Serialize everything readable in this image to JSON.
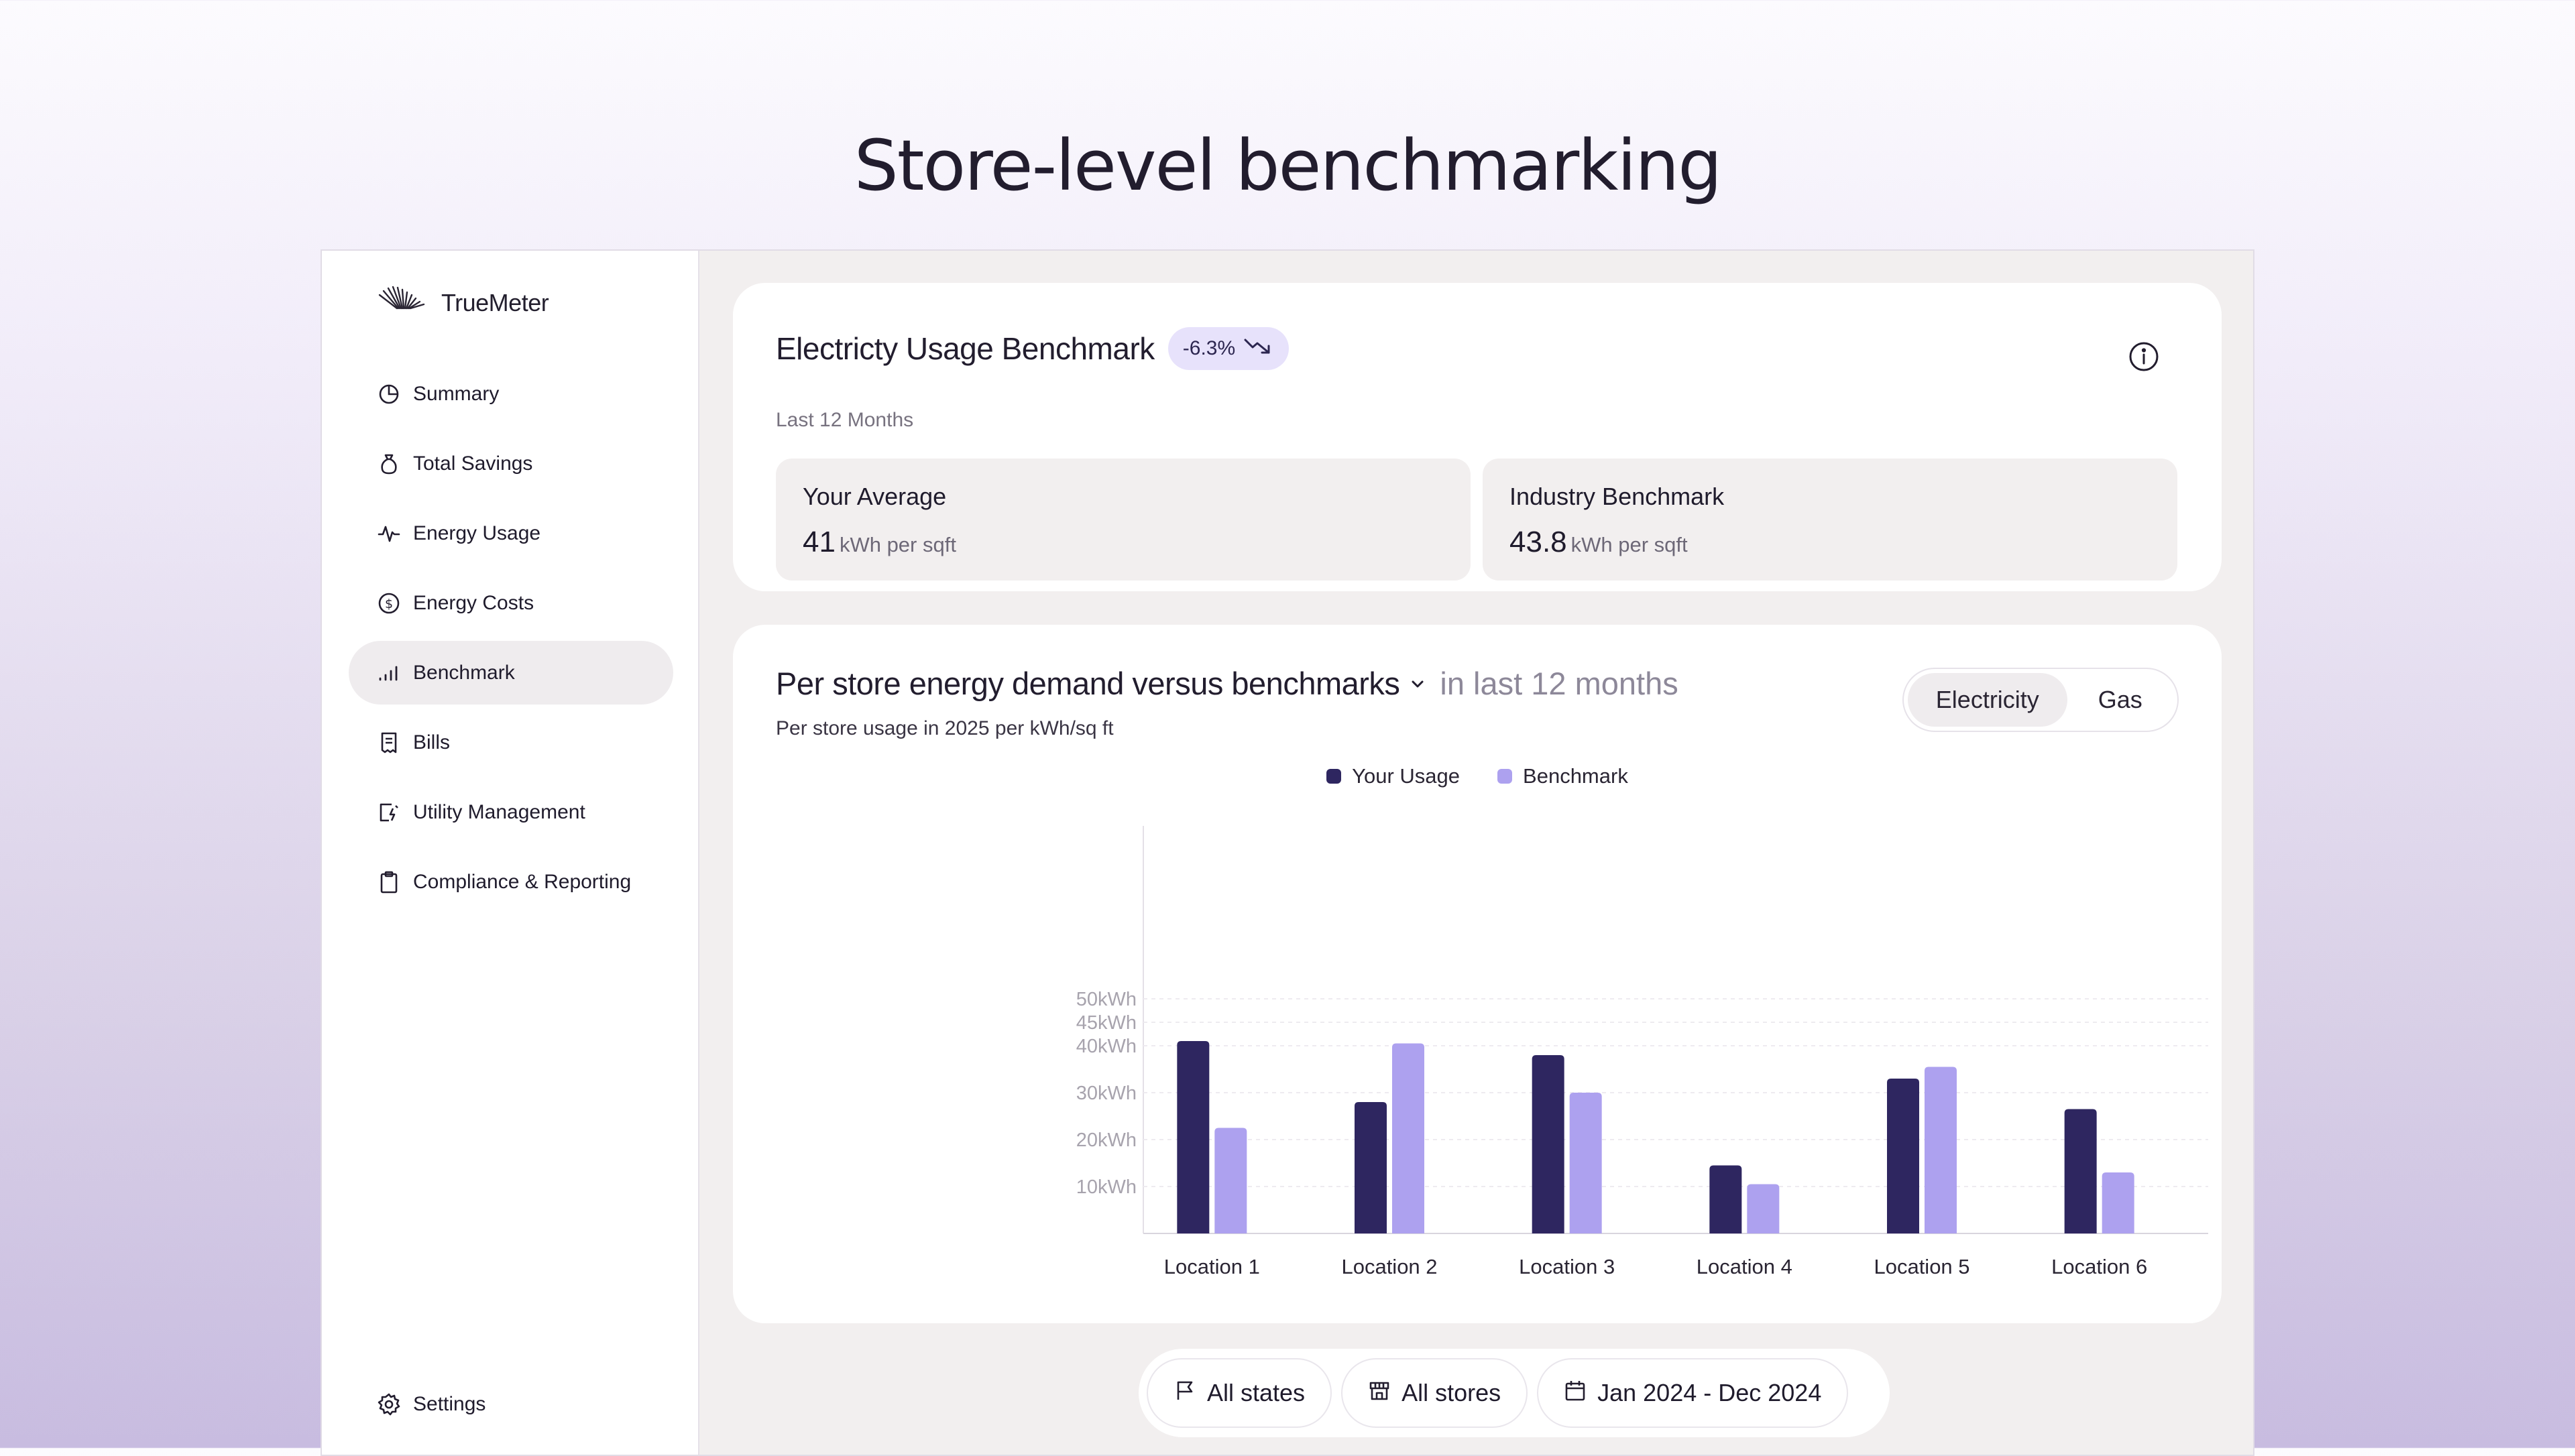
{
  "page": {
    "title": "Store-level benchmarking"
  },
  "app": {
    "name": "TrueMeter"
  },
  "sidebar": {
    "items": [
      {
        "label": "Summary",
        "icon": "clock-pie-icon"
      },
      {
        "label": "Total Savings",
        "icon": "money-bag-icon"
      },
      {
        "label": "Energy Usage",
        "icon": "pulse-icon"
      },
      {
        "label": "Energy Costs",
        "icon": "dollar-circle-icon"
      },
      {
        "label": "Benchmark",
        "icon": "bar-signal-icon",
        "active": true
      },
      {
        "label": "Bills",
        "icon": "receipt-icon"
      },
      {
        "label": "Utility Management",
        "icon": "utility-icon"
      },
      {
        "label": "Compliance & Reporting",
        "icon": "clipboard-icon"
      }
    ],
    "settings_label": "Settings"
  },
  "summary_card": {
    "title": "Electricty Usage Benchmark",
    "badge": "-6.3%",
    "subtitle": "Last 12 Months",
    "your_average": {
      "label": "Your Average",
      "value": "41",
      "unit": "kWh per sqft"
    },
    "industry": {
      "label": "Industry Benchmark",
      "value": "43.8",
      "unit": "kWh per sqft"
    }
  },
  "chart_card": {
    "title": "Per store energy demand versus benchmarks",
    "period": "in last 12 months",
    "subtitle": "Per store usage in 2025 per kWh/sq ft",
    "toggle": {
      "electricity": "Electricity",
      "gas": "Gas",
      "active": "Electricity"
    }
  },
  "chart_data": {
    "type": "bar",
    "categories": [
      "Location 1",
      "Location 2",
      "Location 3",
      "Location 4",
      "Location 5",
      "Location 6"
    ],
    "series": [
      {
        "name": "Your Usage",
        "color": "#2e2660",
        "values": [
          41,
          28,
          38,
          14.5,
          33,
          26.5
        ]
      },
      {
        "name": "Benchmark",
        "color": "#ada1ef",
        "values": [
          22.5,
          40.5,
          30,
          10.5,
          35.5,
          13
        ]
      }
    ],
    "yticks": [
      10,
      20,
      30,
      40,
      45,
      50
    ],
    "ytick_labels": [
      "10kWh",
      "20kWh",
      "30kWh",
      "40kWh",
      "45kWh",
      "50kWh"
    ],
    "ylim": [
      0,
      50
    ],
    "grid": true,
    "legend_position": "top-center"
  },
  "filters": {
    "states": "All states",
    "stores": "All stores",
    "date_range": "Jan 2024 - Dec 2024"
  }
}
